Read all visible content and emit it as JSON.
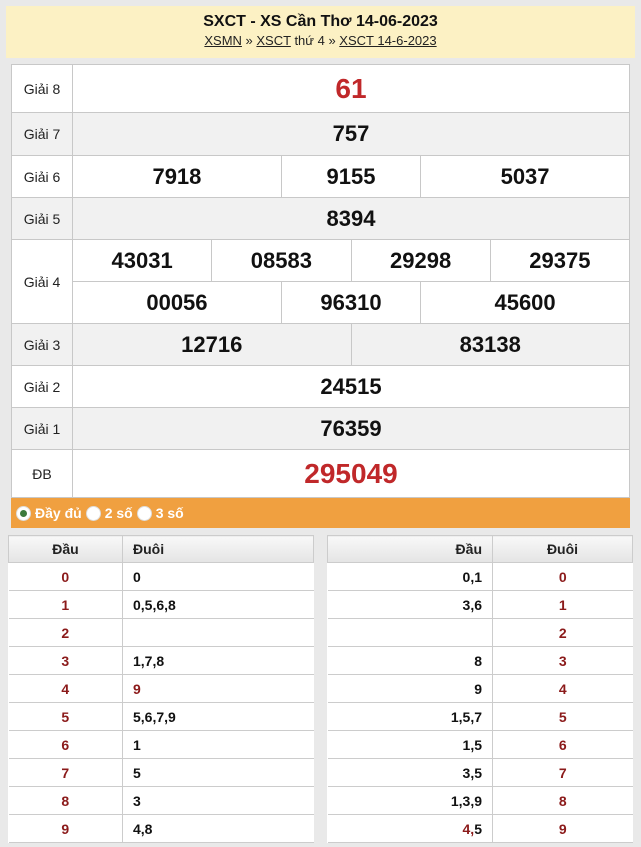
{
  "header": {
    "title": "SXCT - XS Cần Thơ 14-06-2023",
    "breadcrumb": {
      "link1": "XSMN",
      "sep1": " » ",
      "link2": "XSCT",
      "text2": " thứ 4",
      "sep2": " » ",
      "link3": "XSCT 14-6-2023"
    }
  },
  "prizes": {
    "g8": {
      "label": "Giải 8",
      "values": [
        "61"
      ]
    },
    "g7": {
      "label": "Giải 7",
      "values": [
        "757"
      ]
    },
    "g6": {
      "label": "Giải 6",
      "values": [
        "7918",
        "9155",
        "5037"
      ]
    },
    "g5": {
      "label": "Giải 5",
      "values": [
        "8394"
      ]
    },
    "g4": {
      "label": "Giải 4",
      "values": [
        "43031",
        "08583",
        "29298",
        "29375",
        "00056",
        "96310",
        "45600"
      ]
    },
    "g3": {
      "label": "Giải 3",
      "values": [
        "12716",
        "83138"
      ]
    },
    "g2": {
      "label": "Giải 2",
      "values": [
        "24515"
      ]
    },
    "g1": {
      "label": "Giải 1",
      "values": [
        "76359"
      ]
    },
    "db": {
      "label": "ĐB",
      "values": [
        "295049"
      ]
    }
  },
  "options": {
    "full": "Đầy đủ",
    "two": "2 số",
    "three": "3 số",
    "selected": "Đầy đủ"
  },
  "left_table": {
    "headers": [
      "Đầu",
      "Đuôi"
    ],
    "rows": [
      {
        "dau": "0",
        "duoi": "0"
      },
      {
        "dau": "1",
        "duoi": "0,5,6,8"
      },
      {
        "dau": "2",
        "duoi": ""
      },
      {
        "dau": "3",
        "duoi": "1,7,8"
      },
      {
        "dau": "4",
        "duoi": "9"
      },
      {
        "dau": "5",
        "duoi": "5,6,7,9"
      },
      {
        "dau": "6",
        "duoi": "1"
      },
      {
        "dau": "7",
        "duoi": "5"
      },
      {
        "dau": "8",
        "duoi": "3"
      },
      {
        "dau": "9",
        "duoi": "4,8"
      }
    ]
  },
  "right_table": {
    "headers": [
      "Đầu",
      "Đuôi"
    ],
    "rows": [
      {
        "dau": "0,1",
        "duoi": "0"
      },
      {
        "dau": "3,6",
        "duoi": "1"
      },
      {
        "dau": "",
        "duoi": "2"
      },
      {
        "dau": "8",
        "duoi": "3"
      },
      {
        "dau": "9",
        "duoi": "4"
      },
      {
        "dau": "1,5,7",
        "duoi": "5"
      },
      {
        "dau": "1,5",
        "duoi": "6"
      },
      {
        "dau": "3,5",
        "duoi": "7"
      },
      {
        "dau": "1,3,9",
        "duoi": "8"
      },
      {
        "dau": "4,5",
        "duoi": "9"
      }
    ]
  },
  "colors": {
    "special": "#c0282a",
    "header_bg": "#fcf1c4",
    "option_bar": "#f0a040",
    "digit": "#8b1a1a"
  }
}
